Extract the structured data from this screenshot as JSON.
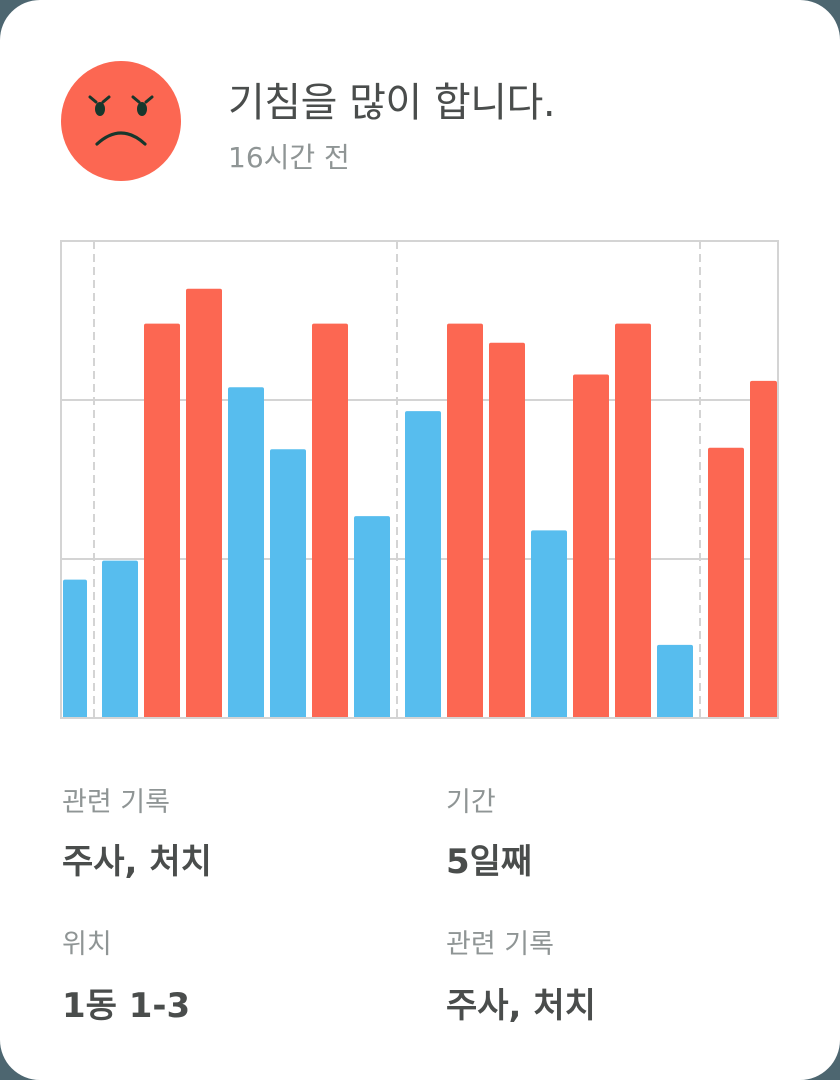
{
  "header": {
    "icon": "angry-face-icon",
    "title": "기침을 많이 합니다.",
    "time_ago": "16시간 전"
  },
  "colors": {
    "background": "#4d6670",
    "card": "#ffffff",
    "face": "#fc6752",
    "face_features": "#17372c",
    "bar_red": "#fc6752",
    "bar_blue": "#57bdee",
    "grid": "#d4d4d4",
    "title_text": "#4a4d4c",
    "muted_text": "#8f9595"
  },
  "chart_data": {
    "type": "bar",
    "title": "",
    "xlabel": "",
    "ylabel": "",
    "ylim": [
      0,
      3
    ],
    "grid": {
      "horizontal": [
        1,
        2
      ],
      "vertical_dashed_after_index": [
        0.5,
        7.8,
        15.0
      ]
    },
    "legend": null,
    "categories": [
      "1",
      "2",
      "3",
      "4",
      "5",
      "6",
      "7",
      "8",
      "9",
      "10",
      "11",
      "12",
      "13",
      "14",
      "15",
      "16",
      "17"
    ],
    "values": [
      0.87,
      0.99,
      2.48,
      2.7,
      2.08,
      1.69,
      2.48,
      1.27,
      1.93,
      2.48,
      2.36,
      1.18,
      2.16,
      2.48,
      0.46,
      1.7,
      2.12
    ],
    "bar_colors": [
      "blue",
      "blue",
      "red",
      "red",
      "blue",
      "blue",
      "red",
      "blue",
      "blue",
      "red",
      "red",
      "blue",
      "red",
      "red",
      "blue",
      "red",
      "red"
    ],
    "series": [
      {
        "name": "red",
        "color": "#fc6752",
        "indices": [
          2,
          3,
          6,
          9,
          10,
          12,
          13,
          15,
          16
        ]
      },
      {
        "name": "blue",
        "color": "#57bdee",
        "indices": [
          0,
          1,
          4,
          5,
          7,
          8,
          11,
          14
        ]
      }
    ]
  },
  "details": [
    {
      "label": "관련 기록",
      "value": "주사, 처치"
    },
    {
      "label": "기간",
      "value": "5일째"
    },
    {
      "label": "위치",
      "value": "1동 1-3"
    },
    {
      "label": "관련 기록",
      "value": "주사, 처치"
    }
  ]
}
